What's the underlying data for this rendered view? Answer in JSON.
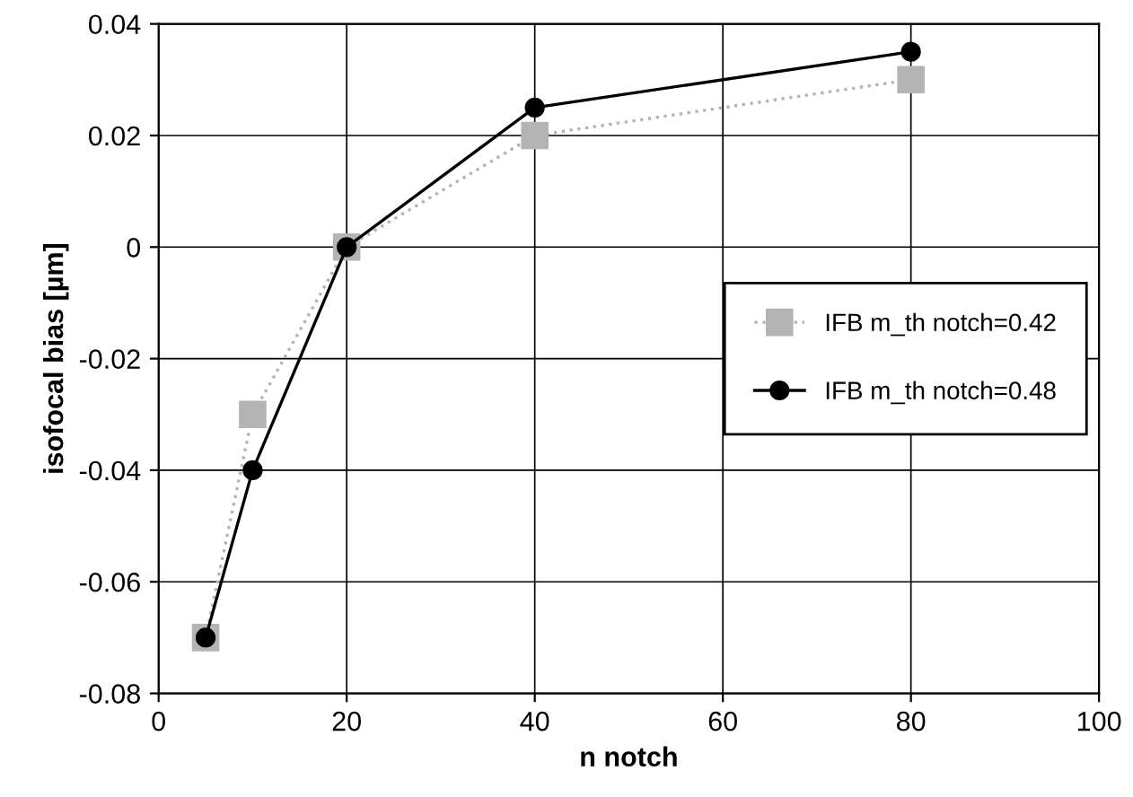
{
  "chart_data": {
    "type": "line",
    "xlabel": "n notch",
    "ylabel": "isofocal bias [µm]",
    "x": [
      5,
      10,
      20,
      40,
      80
    ],
    "series": [
      {
        "name": "IFB m_th notch=0.42",
        "color": "#b4b4b4",
        "values": [
          -0.07,
          -0.03,
          0,
          0.02,
          0.03
        ],
        "marker": "square",
        "line_style": "dotted"
      },
      {
        "name": "IFB m_th notch=0.48",
        "color": "#000000",
        "values": [
          -0.07,
          -0.04,
          0,
          0.025,
          0.035
        ],
        "marker": "circle",
        "line_style": "solid"
      }
    ],
    "xlim": [
      0,
      100
    ],
    "xticks": [
      0,
      20,
      40,
      60,
      80,
      100
    ],
    "ylim": [
      -0.08,
      0.04
    ],
    "yticks": [
      -0.08,
      -0.06,
      -0.04,
      -0.02,
      0,
      0.02,
      0.04
    ],
    "grid": true,
    "legend": "right"
  }
}
